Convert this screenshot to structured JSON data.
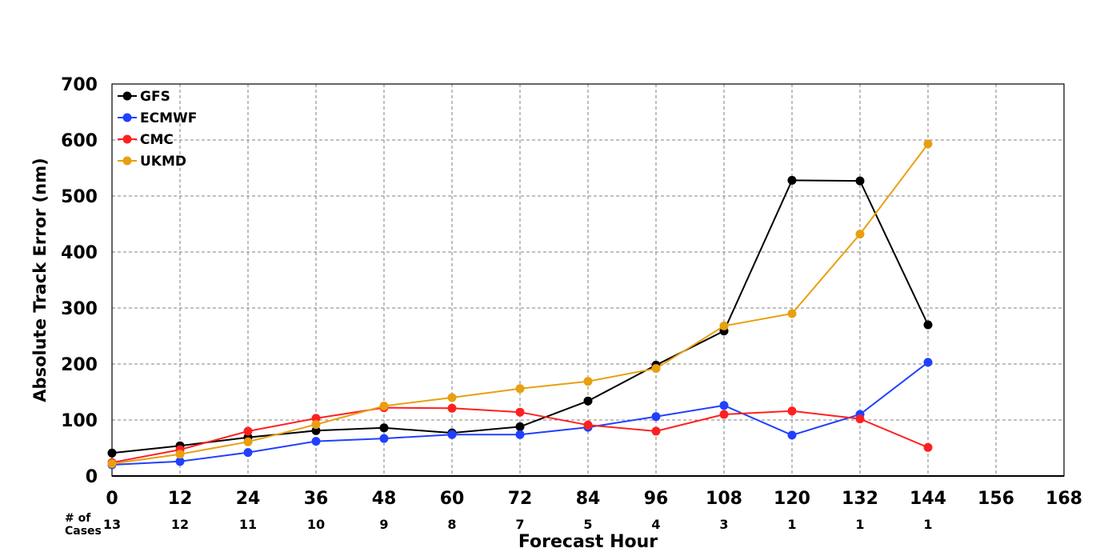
{
  "chart_data": {
    "type": "line",
    "xlabel": "Forecast Hour",
    "ylabel": "Absolute Track Error (nm)",
    "xlim": [
      0,
      168
    ],
    "ylim": [
      0,
      700
    ],
    "x_ticks": [
      0,
      12,
      24,
      36,
      48,
      60,
      72,
      84,
      96,
      108,
      120,
      132,
      144,
      156,
      168
    ],
    "y_ticks": [
      0,
      100,
      200,
      300,
      400,
      500,
      600,
      700
    ],
    "grid": true,
    "legend_position": "top-left",
    "cases_label": "# of Cases",
    "cases": [
      {
        "x": 0,
        "count": "13"
      },
      {
        "x": 12,
        "count": "12"
      },
      {
        "x": 24,
        "count": "11"
      },
      {
        "x": 36,
        "count": "10"
      },
      {
        "x": 48,
        "count": "9"
      },
      {
        "x": 60,
        "count": "8"
      },
      {
        "x": 72,
        "count": "7"
      },
      {
        "x": 84,
        "count": "5"
      },
      {
        "x": 96,
        "count": "4"
      },
      {
        "x": 108,
        "count": "3"
      },
      {
        "x": 120,
        "count": "1"
      },
      {
        "x": 132,
        "count": "1"
      },
      {
        "x": 144,
        "count": "1"
      }
    ],
    "x": [
      0,
      12,
      24,
      36,
      48,
      60,
      72,
      84,
      96,
      108,
      120,
      132,
      144
    ],
    "series": [
      {
        "name": "GFS",
        "color": "#000000",
        "values": [
          41,
          54,
          69,
          81,
          86,
          77,
          88,
          134,
          198,
          259,
          528,
          527,
          270
        ]
      },
      {
        "name": "ECMWF",
        "color": "#2040ff",
        "values": [
          20,
          26,
          42,
          62,
          67,
          74,
          74,
          87,
          106,
          126,
          73,
          110,
          203
        ]
      },
      {
        "name": "CMC",
        "color": "#ff2020",
        "values": [
          24,
          47,
          80,
          103,
          122,
          121,
          114,
          91,
          80,
          110,
          116,
          102,
          51
        ]
      },
      {
        "name": "UKMD",
        "color": "#e8a010",
        "values": [
          22,
          39,
          61,
          92,
          125,
          140,
          156,
          169,
          192,
          268,
          290,
          432,
          593
        ]
      }
    ]
  }
}
